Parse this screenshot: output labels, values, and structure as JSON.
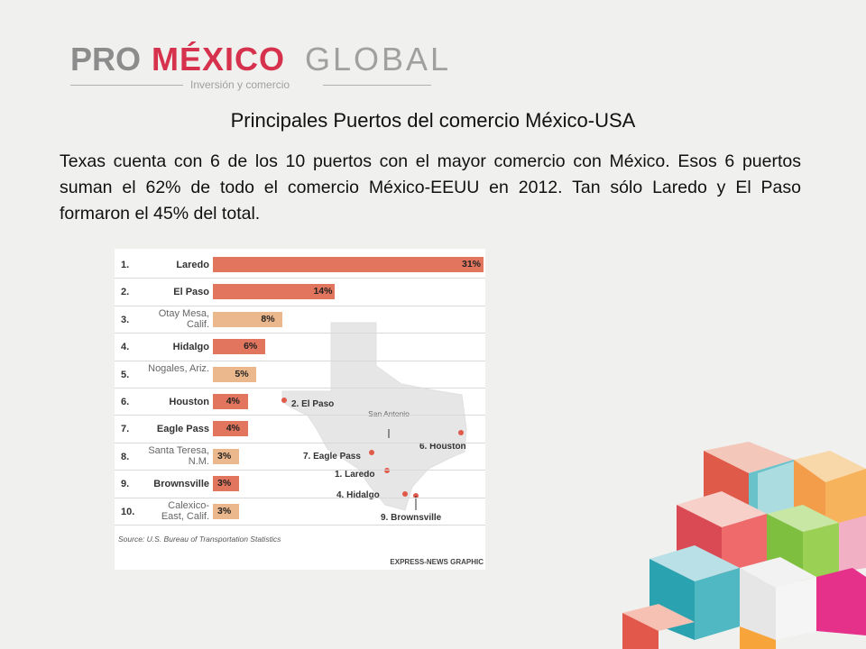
{
  "logo": {
    "word_pro": "PRO",
    "word_mexico": "MÉXICO",
    "word_global": "GLOBAL",
    "tagline": "Inversión y comercio"
  },
  "slide": {
    "title": "Principales Puertos del comercio México-USA",
    "description": "Texas cuenta con 6 de los 10 puertos con el mayor comercio con México. Esos 6 puertos suman el 62% de todo el comercio México-EEUU en 2012. Tan sólo Laredo y El Paso formaron el 45% del total."
  },
  "chart_data": {
    "type": "bar",
    "orientation": "horizontal",
    "categories": [
      "Laredo",
      "El Paso",
      "Otay Mesa, Calif.",
      "Hidalgo",
      "Nogales, Ariz.",
      "Houston",
      "Eagle Pass",
      "Santa Teresa, N.M.",
      "Brownsville",
      "Calexico-East, Calif."
    ],
    "ranks": [
      "1.",
      "2.",
      "3.",
      "4.",
      "5.",
      "6.",
      "7.",
      "8.",
      "9.",
      "10."
    ],
    "values": [
      31,
      14,
      8,
      6,
      5,
      4,
      4,
      3,
      3,
      3
    ],
    "value_labels": [
      "31%",
      "14%",
      "8%",
      "6%",
      "5%",
      "4%",
      "4%",
      "3%",
      "3%",
      "3%"
    ],
    "texas_port": [
      true,
      true,
      false,
      true,
      false,
      true,
      true,
      false,
      true,
      false
    ],
    "colors": {
      "texas": "#e2755d",
      "other": "#ebb78c"
    },
    "unit": "%",
    "source": "Source: U.S. Bureau of Transportation Statistics",
    "credit": "EXPRESS-NEWS GRAPHIC",
    "map_labels": [
      "2. El Paso",
      "San Antonio",
      "6. Houston",
      "7. Eagle Pass",
      "1. Laredo",
      "4. Hidalgo",
      "9. Brownsville"
    ]
  }
}
